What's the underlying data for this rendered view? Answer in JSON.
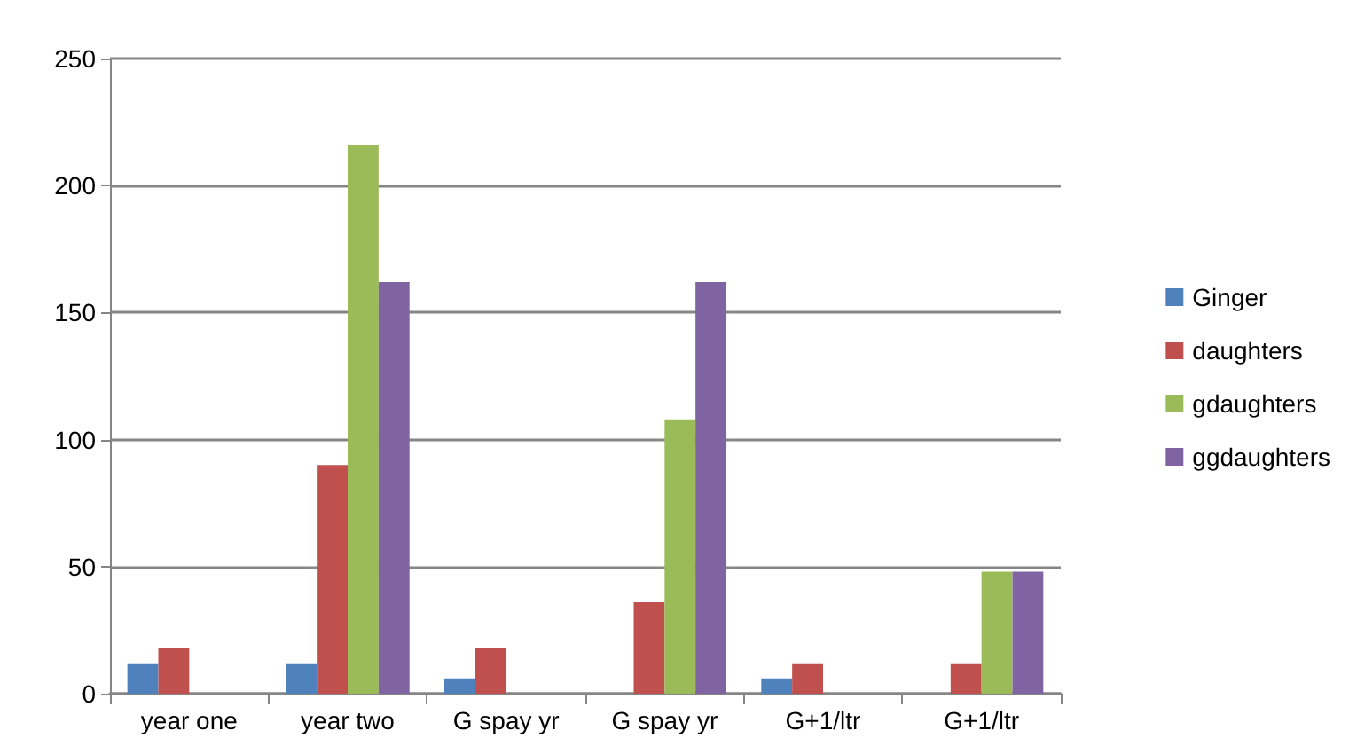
{
  "chart_data": {
    "type": "bar",
    "categories": [
      "year one",
      "year two",
      "G spay yr",
      "G spay yr",
      "G+1/ltr",
      "G+1/ltr"
    ],
    "series": [
      {
        "name": "Ginger",
        "color": "#4f81bd",
        "values": [
          12,
          12,
          6,
          null,
          6,
          null
        ]
      },
      {
        "name": "daughters",
        "color": "#c0504d",
        "values": [
          18,
          90,
          18,
          36,
          12,
          12
        ]
      },
      {
        "name": "gdaughters",
        "color": "#9bbb59",
        "values": [
          null,
          216,
          null,
          108,
          null,
          48
        ]
      },
      {
        "name": "ggdaughters",
        "color": "#8064a2",
        "values": [
          null,
          162,
          null,
          162,
          null,
          48
        ]
      }
    ],
    "ylim": [
      0,
      250
    ],
    "yticks": [
      0,
      50,
      100,
      150,
      200,
      250
    ],
    "grid": "y",
    "legend": "right"
  }
}
